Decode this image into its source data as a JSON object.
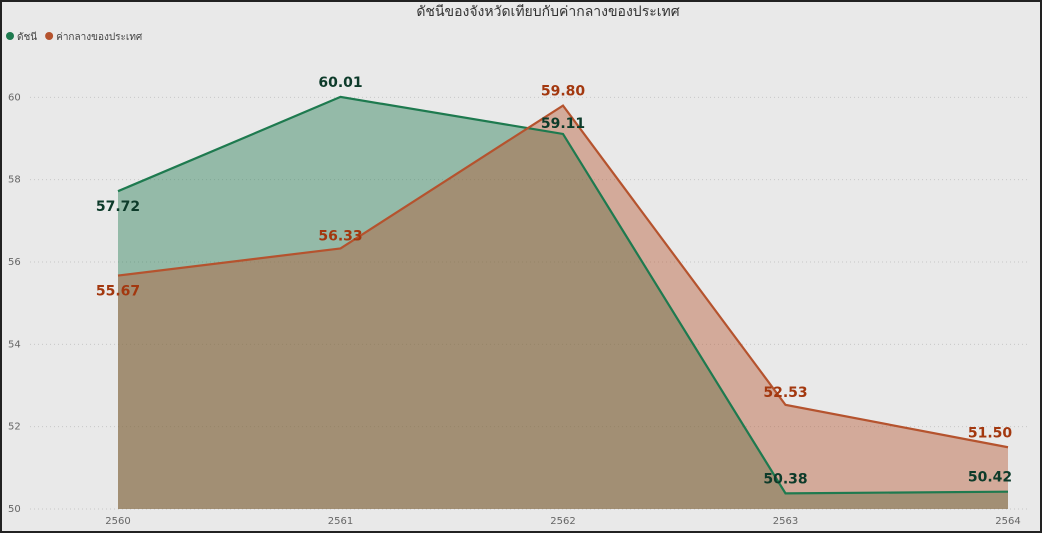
{
  "chart_data": {
    "type": "area",
    "title": "ดัชนีของจังหวัดเทียบกับค่ากลางของประเทศ",
    "categories": [
      "2560",
      "2561",
      "2562",
      "2563",
      "2564"
    ],
    "series": [
      {
        "name": "ดัชนี",
        "color": "#1e7a4f",
        "label_color": "#0d3b2a",
        "values": [
          57.72,
          60.01,
          59.11,
          50.38,
          50.42
        ],
        "value_labels": [
          "57.72",
          "60.01",
          "59.11",
          "50.38",
          "50.42"
        ]
      },
      {
        "name": "ค่ากลางของประเทศ",
        "color": "#b5532e",
        "label_color": "#a3380f",
        "values": [
          55.67,
          56.33,
          59.8,
          52.53,
          51.5
        ],
        "value_labels": [
          "55.67",
          "56.33",
          "59.80",
          "52.53",
          "51.50"
        ]
      }
    ],
    "ylim": [
      50,
      62
    ],
    "yticks": [
      50,
      52,
      54,
      56,
      58,
      60
    ],
    "grid": true
  }
}
